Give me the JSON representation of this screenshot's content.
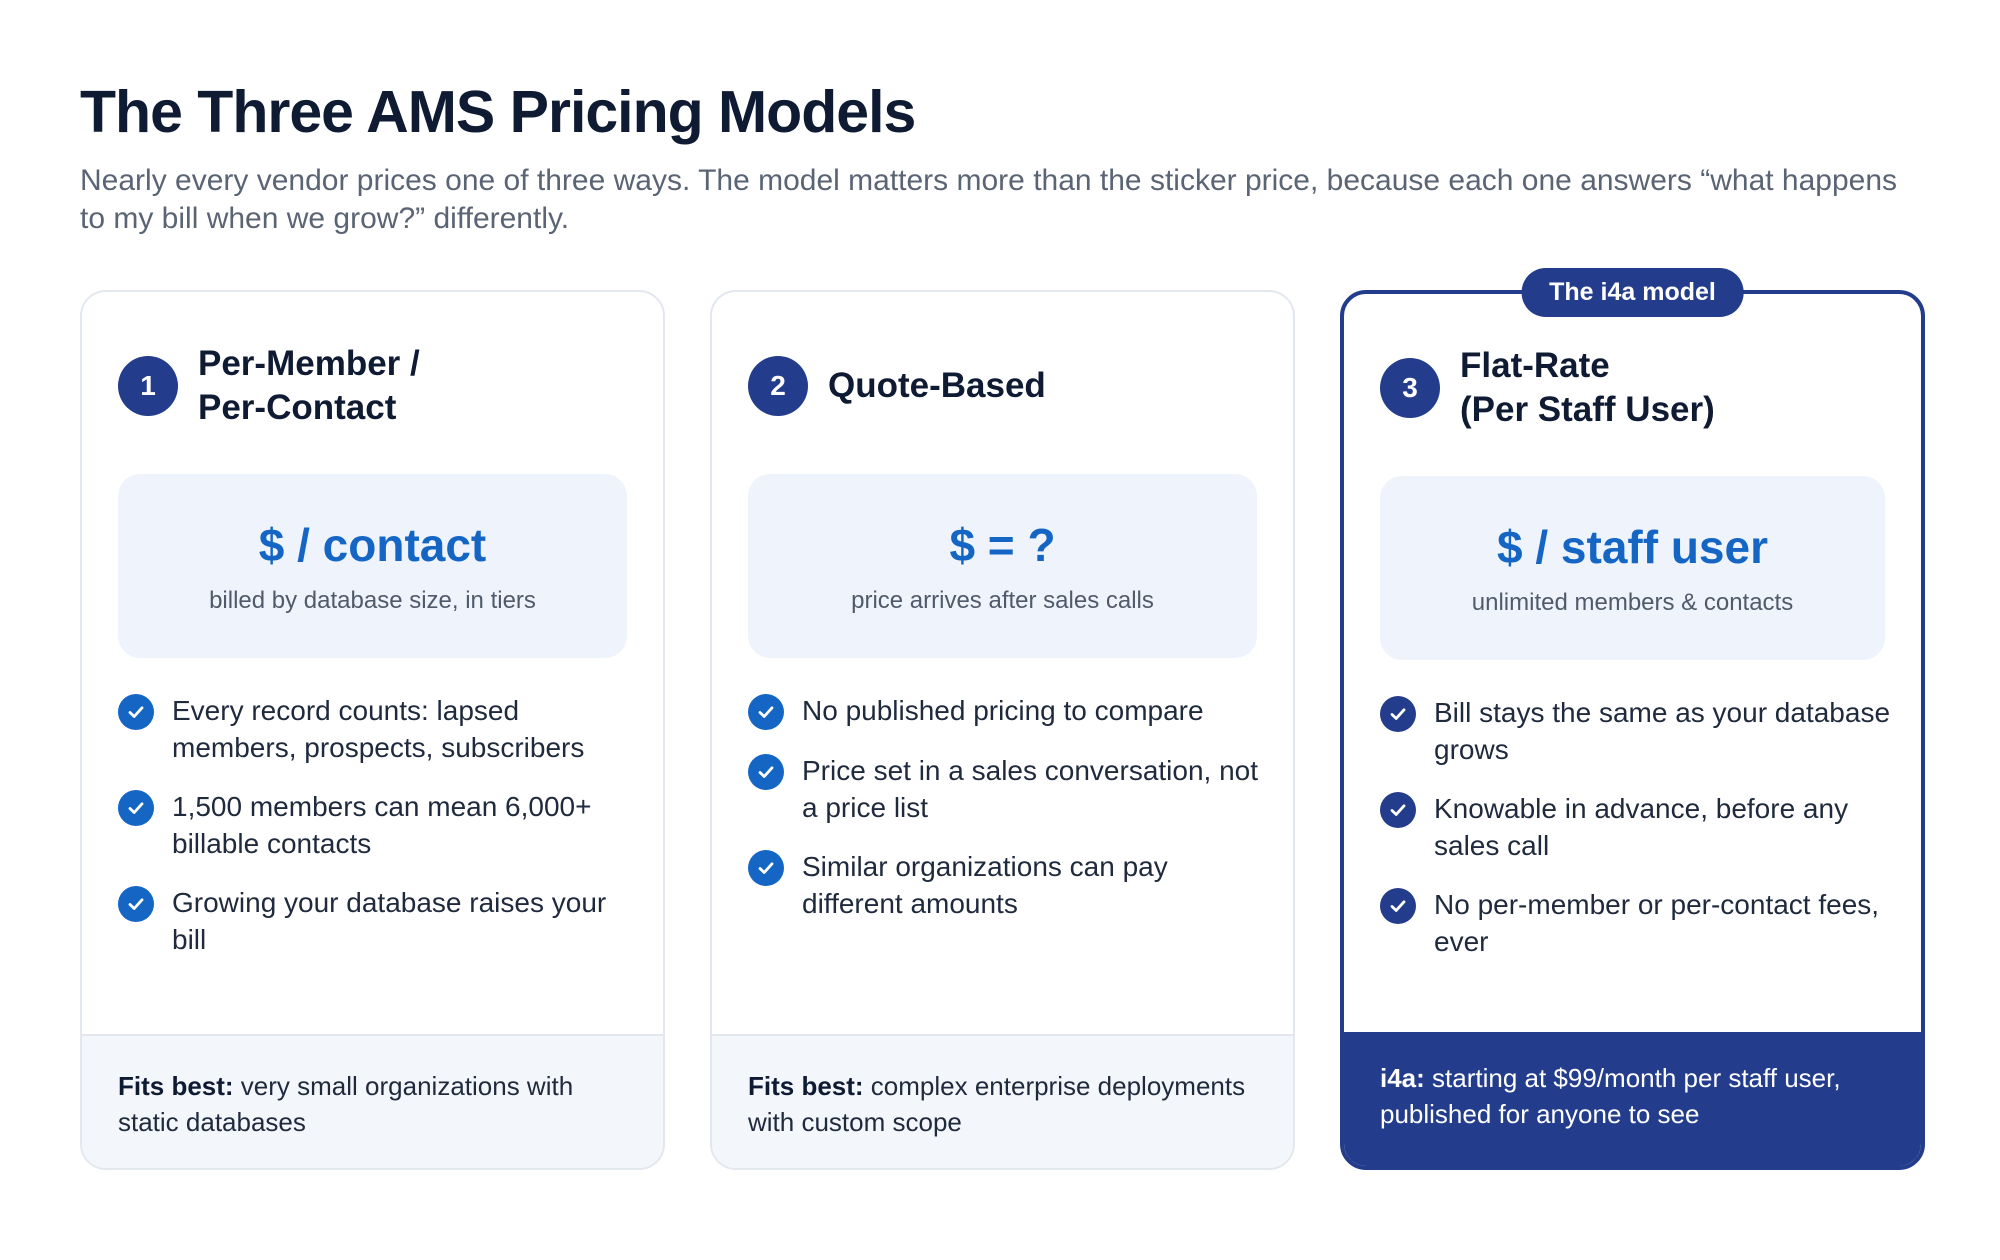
{
  "title": "The Three AMS Pricing Models",
  "subtitle": "Nearly every vendor prices one of three ways. The model matters more than the sticker price, because each one answers “what happens to my bill when we grow?” differently.",
  "colors": {
    "navy": "#233d8c",
    "blue": "#1566c4",
    "panel": "#eff4fc"
  },
  "cards": [
    {
      "number": "1",
      "title": "Per-Member /\nPer-Contact",
      "price_main": "$ / contact",
      "price_sub": "billed by database size, in tiers",
      "bullets": [
        "Every record counts: lapsed members, prospects, subscribers",
        "1,500 members can mean 6,000+ billable contacts",
        "Growing your database raises your bill"
      ],
      "footer_label": "Fits best:",
      "footer_text": " very small organizations with static databases"
    },
    {
      "number": "2",
      "title": "Quote-Based",
      "price_main": "$ = ?",
      "price_sub": "price arrives after sales calls",
      "bullets": [
        "No published pricing to compare",
        "Price set in a sales conversation, not a price list",
        "Similar organizations can pay different amounts"
      ],
      "footer_label": "Fits best:",
      "footer_text": " complex enterprise deployments with custom scope"
    },
    {
      "badge": "The i4a model",
      "number": "3",
      "title": "Flat-Rate\n(Per Staff User)",
      "price_main": "$ / staff user",
      "price_sub": "unlimited members & contacts",
      "bullets": [
        "Bill stays the same as your database grows",
        "Knowable in advance, before any sales call",
        "No per-member or per-contact fees, ever"
      ],
      "footer_label": "i4a:",
      "footer_text": " starting at $99/month per staff user, published for anyone to see"
    }
  ]
}
